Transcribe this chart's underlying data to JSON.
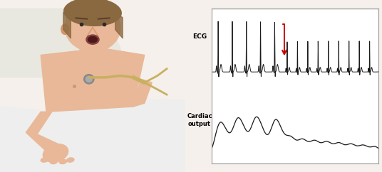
{
  "fig_width": 5.36,
  "fig_height": 2.42,
  "dpi": 100,
  "bg_color": "#f5f0ec",
  "ecg_label": "ECG",
  "cardiac_label": "Cardiac\noutput",
  "label_fontsize": 6.5,
  "ecg_color": "#1a1a1a",
  "cardiac_color": "#1a1a1a",
  "arrow_color": "#cc0000",
  "label_panel_color": "#8badd4",
  "border_color": "#999999",
  "skin_color": "#e8b898",
  "skin_dark": "#d4956a",
  "hair_color": "#8a6840",
  "white_color": "#f5f5f5",
  "sheet_color": "#eeeeee",
  "forceps_color": "#c8b060"
}
